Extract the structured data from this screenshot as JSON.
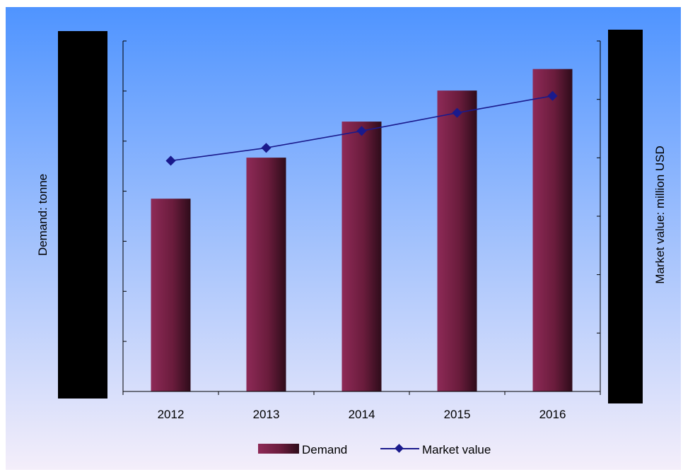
{
  "chart_data": {
    "type": "bar",
    "categories": [
      "2012",
      "2013",
      "2014",
      "2015",
      "2016"
    ],
    "series": [
      {
        "name": "Demand",
        "kind": "bar",
        "axis": "left",
        "values": [
          38.5,
          46.7,
          53.9,
          60.1,
          64.4
        ],
        "color": "#7a1f45"
      },
      {
        "name": "Market value",
        "kind": "line",
        "axis": "right",
        "values": [
          39.5,
          41.7,
          44.6,
          47.7,
          50.6
        ],
        "color": "#1a1a8c"
      }
    ],
    "ylabel": "Demand: tonne",
    "y2label": "Market value: million USD",
    "ylim": [
      0,
      70
    ],
    "y2lim": [
      0,
      60
    ],
    "grid": false,
    "legend_position": "bottom",
    "background": {
      "top": "#4f94ff",
      "bottom": "#f4eefa"
    },
    "redaction_color": "#000000"
  }
}
